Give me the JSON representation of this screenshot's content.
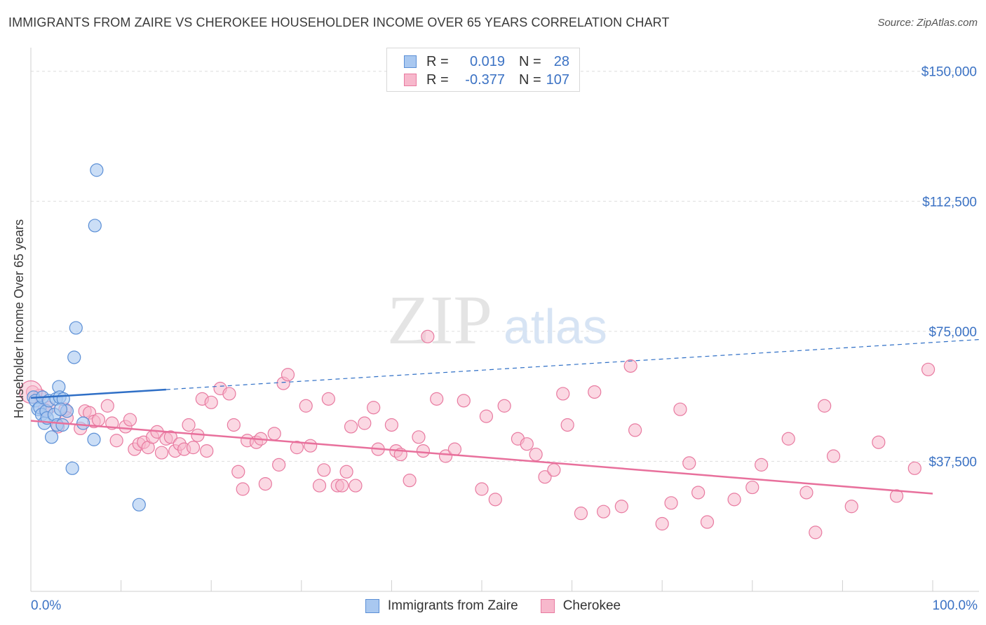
{
  "title": "IMMIGRANTS FROM ZAIRE VS CHEROKEE HOUSEHOLDER INCOME OVER 65 YEARS CORRELATION CHART",
  "source": "Source: ZipAtlas.com",
  "watermark": {
    "zip": "ZIP",
    "atlas": "atlas"
  },
  "legend": {
    "rows": [
      {
        "r_label": "R =",
        "r_value": "0.019",
        "n_label": "N =",
        "n_value": "28"
      },
      {
        "r_label": "R =",
        "r_value": "-0.377",
        "n_label": "N =",
        "n_value": "107"
      }
    ]
  },
  "bottom_legend": [
    "Immigrants from Zaire",
    "Cherokee"
  ],
  "colors": {
    "blue_fill": "#a9c8f0",
    "blue_stroke": "#5b8fd6",
    "blue_line": "#2f6fc6",
    "pink_fill": "#f7b8cc",
    "pink_stroke": "#e87aa0",
    "pink_line": "#e8709c",
    "grid": "#dddddd",
    "tick_text": "#3b72c4"
  },
  "chart_data": {
    "type": "scatter",
    "title": "IMMIGRANTS FROM ZAIRE VS CHEROKEE HOUSEHOLDER INCOME OVER 65 YEARS CORRELATION CHART",
    "xlabel": "",
    "ylabel": "Householder Income Over 65 years",
    "xlim": [
      0,
      100
    ],
    "ylim": [
      0,
      155000
    ],
    "x_tick_labels": [
      "0.0%",
      "100.0%"
    ],
    "y_ticks": [
      37500,
      75000,
      112500,
      150000
    ],
    "y_tick_labels": [
      "$37,500",
      "$75,000",
      "$112,500",
      "$150,000"
    ],
    "series": [
      {
        "name": "Immigrants from Zaire",
        "r": 0.019,
        "n": 28,
        "trend": {
          "x0": 0,
          "y0": 55800,
          "x1": 100,
          "y1": 71800,
          "solid_until": 15
        },
        "points": [
          [
            0.3,
            56000
          ],
          [
            0.5,
            55000
          ],
          [
            0.8,
            52500
          ],
          [
            1.0,
            53000
          ],
          [
            1.2,
            51000
          ],
          [
            1.3,
            56000
          ],
          [
            1.5,
            48500
          ],
          [
            1.7,
            52000
          ],
          [
            1.8,
            50000
          ],
          [
            2.0,
            55000
          ],
          [
            2.3,
            44500
          ],
          [
            2.6,
            51000
          ],
          [
            2.8,
            55500
          ],
          [
            2.9,
            48000
          ],
          [
            3.1,
            59000
          ],
          [
            3.2,
            56000
          ],
          [
            3.5,
            48000
          ],
          [
            3.6,
            55500
          ],
          [
            4.6,
            35500
          ],
          [
            4.8,
            67500
          ],
          [
            5.0,
            76000
          ],
          [
            4.0,
            52000
          ],
          [
            5.8,
            48500
          ],
          [
            7.0,
            43800
          ],
          [
            7.1,
            105500
          ],
          [
            7.3,
            121500
          ],
          [
            12.0,
            25000
          ],
          [
            3.3,
            52500
          ]
        ]
      },
      {
        "name": "Cherokee",
        "r": -0.377,
        "n": 107,
        "trend": {
          "x0": 0,
          "y0": 49200,
          "x1": 100,
          "y1": 28200
        },
        "points": [
          [
            0.2,
            57500
          ],
          [
            1.0,
            56500
          ],
          [
            1.5,
            52500
          ],
          [
            2.0,
            53000
          ],
          [
            3.0,
            47500
          ],
          [
            3.8,
            52500
          ],
          [
            4.0,
            50000
          ],
          [
            5.5,
            47000
          ],
          [
            6.0,
            52000
          ],
          [
            6.5,
            51500
          ],
          [
            7.0,
            49000
          ],
          [
            7.5,
            49500
          ],
          [
            8.5,
            53500
          ],
          [
            9.0,
            48500
          ],
          [
            9.5,
            43500
          ],
          [
            10.5,
            47500
          ],
          [
            11.0,
            49500
          ],
          [
            11.5,
            41000
          ],
          [
            12.0,
            42500
          ],
          [
            12.5,
            43000
          ],
          [
            13.0,
            41500
          ],
          [
            13.5,
            44500
          ],
          [
            14.0,
            46000
          ],
          [
            14.5,
            40000
          ],
          [
            15.0,
            44000
          ],
          [
            15.5,
            44500
          ],
          [
            16.0,
            40500
          ],
          [
            16.5,
            42500
          ],
          [
            17.0,
            41000
          ],
          [
            17.5,
            48000
          ],
          [
            18.0,
            41500
          ],
          [
            18.5,
            45000
          ],
          [
            19.0,
            55500
          ],
          [
            19.5,
            40500
          ],
          [
            20.0,
            54500
          ],
          [
            21.0,
            58500
          ],
          [
            22.0,
            57000
          ],
          [
            22.5,
            48000
          ],
          [
            23.0,
            34500
          ],
          [
            23.5,
            29500
          ],
          [
            24.0,
            43500
          ],
          [
            25.0,
            43000
          ],
          [
            25.5,
            44000
          ],
          [
            26.0,
            31000
          ],
          [
            27.0,
            45500
          ],
          [
            27.5,
            36500
          ],
          [
            28.0,
            60000
          ],
          [
            28.5,
            62500
          ],
          [
            29.5,
            41500
          ],
          [
            30.5,
            53500
          ],
          [
            31.0,
            42000
          ],
          [
            32.0,
            30500
          ],
          [
            32.5,
            35000
          ],
          [
            33.0,
            55500
          ],
          [
            34.0,
            30500
          ],
          [
            34.5,
            30500
          ],
          [
            35.0,
            34500
          ],
          [
            35.5,
            47500
          ],
          [
            36.0,
            30500
          ],
          [
            37.0,
            48500
          ],
          [
            38.0,
            53000
          ],
          [
            38.5,
            41000
          ],
          [
            40.0,
            48000
          ],
          [
            40.5,
            40500
          ],
          [
            41.0,
            39500
          ],
          [
            42.0,
            32000
          ],
          [
            43.0,
            44500
          ],
          [
            43.5,
            40500
          ],
          [
            44.0,
            73500
          ],
          [
            45.0,
            55500
          ],
          [
            46.0,
            39000
          ],
          [
            47.0,
            41000
          ],
          [
            48.0,
            55000
          ],
          [
            50.0,
            29500
          ],
          [
            50.5,
            50500
          ],
          [
            51.5,
            26500
          ],
          [
            52.5,
            53500
          ],
          [
            54.0,
            44000
          ],
          [
            55.0,
            42500
          ],
          [
            56.0,
            39500
          ],
          [
            57.0,
            33000
          ],
          [
            58.0,
            35000
          ],
          [
            59.0,
            57000
          ],
          [
            59.5,
            48000
          ],
          [
            61.0,
            22500
          ],
          [
            62.5,
            57500
          ],
          [
            63.5,
            23000
          ],
          [
            65.5,
            24500
          ],
          [
            66.5,
            65000
          ],
          [
            67.0,
            46500
          ],
          [
            70.0,
            19500
          ],
          [
            71.0,
            25500
          ],
          [
            72.0,
            52500
          ],
          [
            73.0,
            37000
          ],
          [
            74.0,
            28500
          ],
          [
            75.0,
            20000
          ],
          [
            78.0,
            26500
          ],
          [
            80.0,
            30000
          ],
          [
            81.0,
            36500
          ],
          [
            84.0,
            44000
          ],
          [
            86.0,
            28500
          ],
          [
            87.0,
            17000
          ],
          [
            88.0,
            53500
          ],
          [
            89.0,
            39000
          ],
          [
            91.0,
            24500
          ],
          [
            94.0,
            43000
          ],
          [
            96.0,
            27500
          ],
          [
            98.0,
            35500
          ],
          [
            99.5,
            64000
          ]
        ]
      }
    ]
  }
}
